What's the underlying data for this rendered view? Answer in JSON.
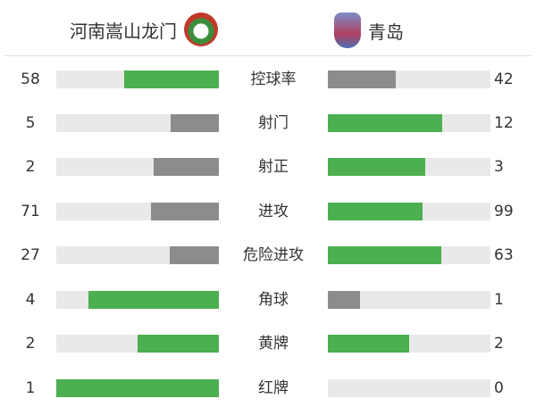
{
  "home": {
    "name": "河南嵩山龙门",
    "logo": "henan-club-crest"
  },
  "away": {
    "name": "青岛",
    "logo": "qingdao-club-crest"
  },
  "colors": {
    "leading": "#4caf50",
    "trailing": "#8c8c8c",
    "track": "#e9e9e9"
  },
  "stats": [
    {
      "label": "控球率",
      "home": 58,
      "away": 42
    },
    {
      "label": "射门",
      "home": 5,
      "away": 12
    },
    {
      "label": "射正",
      "home": 2,
      "away": 3
    },
    {
      "label": "进攻",
      "home": 71,
      "away": 99
    },
    {
      "label": "危险进攻",
      "home": 27,
      "away": 63
    },
    {
      "label": "角球",
      "home": 4,
      "away": 1
    },
    {
      "label": "黄牌",
      "home": 2,
      "away": 2
    },
    {
      "label": "红牌",
      "home": 1,
      "away": 0
    }
  ]
}
